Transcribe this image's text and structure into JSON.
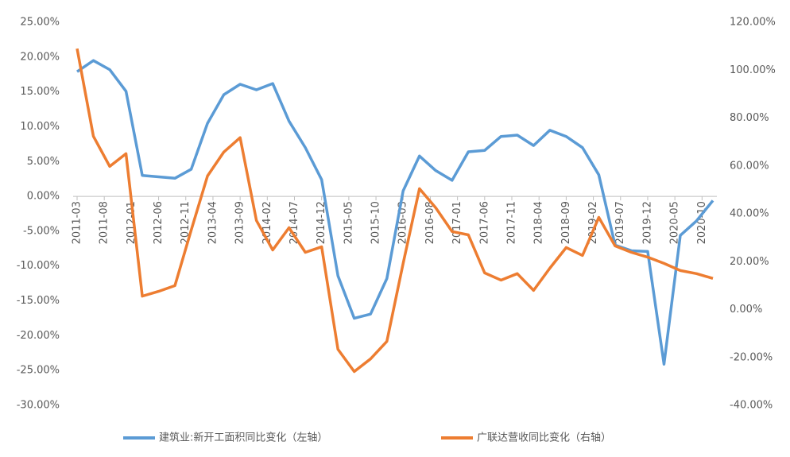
{
  "chart_data": {
    "type": "line",
    "x": [
      "2011-03",
      "2011-06",
      "2011-09",
      "2011-12",
      "2012-03",
      "2012-06",
      "2012-09",
      "2012-12",
      "2013-03",
      "2013-06",
      "2013-09",
      "2013-12",
      "2014-03",
      "2014-06",
      "2014-09",
      "2014-12",
      "2015-03",
      "2015-06",
      "2015-09",
      "2015-12",
      "2016-03",
      "2016-06",
      "2016-09",
      "2016-12",
      "2017-03",
      "2017-06",
      "2017-09",
      "2017-12",
      "2018-03",
      "2018-06",
      "2018-09",
      "2018-12",
      "2019-03",
      "2019-06",
      "2019-09",
      "2019-12",
      "2020-03",
      "2020-06",
      "2020-09",
      "2020-12"
    ],
    "xticks": [
      "2011-03",
      "2011-08",
      "2012-01",
      "2012-06",
      "2012-11",
      "2013-04",
      "2013-09",
      "2014-02",
      "2014-07",
      "2014-12",
      "2015-05",
      "2015-10",
      "2016-03",
      "2016-08",
      "2017-01",
      "2017-06",
      "2017-11",
      "2018-04",
      "2018-09",
      "2019-02",
      "2019-07",
      "2019-12",
      "2020-05",
      "2020-10"
    ],
    "series": [
      {
        "name": "建筑业:新开工面积同比变化（左轴）",
        "color": "#5b9bd5",
        "values": [
          17.9,
          19.5,
          18.2,
          15.1,
          3.0,
          2.8,
          2.6,
          3.9,
          10.5,
          14.6,
          16.1,
          15.3,
          16.2,
          10.8,
          7.0,
          2.4,
          -11.4,
          -17.5,
          -16.9,
          -11.8,
          0.8,
          5.8,
          3.7,
          2.3,
          6.4,
          6.6,
          8.6,
          8.8,
          7.3,
          9.5,
          8.6,
          7.0,
          3.1,
          -7.0,
          -7.8,
          -7.9,
          -24.1,
          -5.6,
          -3.5,
          -0.6
        ]
      },
      {
        "name": "广联达营收同比变化（右轴）",
        "color": "#ed7d31",
        "axis": "y2",
        "values": [
          109,
          72.4,
          59.8,
          65.1,
          5.6,
          7.6,
          10.0,
          33.2,
          55.8,
          65.8,
          71.8,
          37.2,
          24.9,
          34.2,
          23.9,
          26.2,
          -16.6,
          -25.9,
          -20.6,
          -13.3,
          19.3,
          50.5,
          42.5,
          32.6,
          31.2,
          15.3,
          12.3,
          15.0,
          8.0,
          17.3,
          25.9,
          22.6,
          38.5,
          26.6,
          23.9,
          21.9,
          19.3,
          16.3,
          15.0,
          13.0
        ]
      }
    ],
    "ylim": [
      -30,
      25
    ],
    "yticks": [
      {
        "value": 25,
        "label": "25.00%"
      },
      {
        "value": 20,
        "label": "20.00%"
      },
      {
        "value": 15,
        "label": "15.00%"
      },
      {
        "value": 10,
        "label": "10.00%"
      },
      {
        "value": 5,
        "label": "5.00%"
      },
      {
        "value": 0,
        "label": "0.00%"
      },
      {
        "value": -5,
        "label": "-5.00%"
      },
      {
        "value": -10,
        "label": "-10.00%"
      },
      {
        "value": -15,
        "label": "-15.00%"
      },
      {
        "value": -20,
        "label": "-20.00%"
      },
      {
        "value": -25,
        "label": "-25.00%"
      },
      {
        "value": -30,
        "label": "-30.00%"
      }
    ],
    "y2lim": [
      -40,
      120
    ],
    "y2ticks": [
      {
        "value": 120,
        "label": "120.00%"
      },
      {
        "value": 100,
        "label": "100.00%"
      },
      {
        "value": 80,
        "label": "80.00%"
      },
      {
        "value": 60,
        "label": "60.00%"
      },
      {
        "value": 40,
        "label": "40.00%"
      },
      {
        "value": 20,
        "label": "20.00%"
      },
      {
        "value": 0,
        "label": "0.00%"
      },
      {
        "value": -20,
        "label": "-20.00%"
      },
      {
        "value": -40,
        "label": "-40.00%"
      }
    ],
    "legend": "bottom"
  }
}
